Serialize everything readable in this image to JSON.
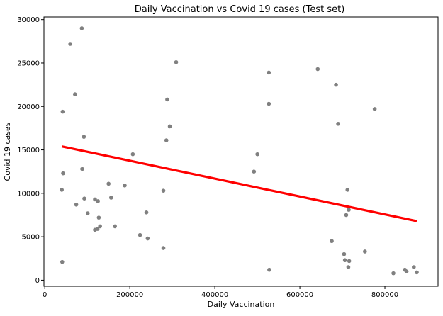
{
  "chart_data": {
    "type": "scatter",
    "title": "Daily Vaccination vs Covid 19 cases (Test set)",
    "xlabel": "Daily Vaccination",
    "ylabel": "Covid 19 cases",
    "xlim": [
      -2000,
      925000
    ],
    "ylim": [
      -700,
      30300
    ],
    "xticks": [
      0,
      200000,
      400000,
      600000,
      800000
    ],
    "yticks": [
      0,
      5000,
      10000,
      15000,
      20000,
      25000,
      30000
    ],
    "grid": false,
    "legend": "none",
    "point_color": "#808080",
    "line_color": "#ff0000",
    "series": [
      {
        "type": "scatter",
        "points": [
          [
            87000,
            29000
          ],
          [
            60000,
            27200
          ],
          [
            309000,
            25100
          ],
          [
            71000,
            21400
          ],
          [
            42000,
            19400
          ],
          [
            288000,
            20800
          ],
          [
            294000,
            17700
          ],
          [
            92000,
            16500
          ],
          [
            286000,
            16100
          ],
          [
            207000,
            14500
          ],
          [
            88000,
            12800
          ],
          [
            43000,
            12300
          ],
          [
            40000,
            10400
          ],
          [
            150000,
            11100
          ],
          [
            188000,
            10900
          ],
          [
            279000,
            10300
          ],
          [
            93000,
            9400
          ],
          [
            156000,
            9500
          ],
          [
            118000,
            9300
          ],
          [
            74000,
            8700
          ],
          [
            125000,
            9100
          ],
          [
            101000,
            7700
          ],
          [
            239000,
            7800
          ],
          [
            127000,
            7200
          ],
          [
            165000,
            6200
          ],
          [
            130000,
            6200
          ],
          [
            124000,
            5900
          ],
          [
            118000,
            5800
          ],
          [
            224000,
            5200
          ],
          [
            242000,
            4800
          ],
          [
            279000,
            3700
          ],
          [
            41000,
            2100
          ],
          [
            527000,
            23900
          ],
          [
            527000,
            20300
          ],
          [
            500000,
            14500
          ],
          [
            492000,
            12500
          ],
          [
            528000,
            1200
          ],
          [
            642000,
            24300
          ],
          [
            685000,
            22500
          ],
          [
            690000,
            18000
          ],
          [
            776000,
            19700
          ],
          [
            712000,
            10400
          ],
          [
            709000,
            7500
          ],
          [
            715000,
            8100
          ],
          [
            675000,
            4500
          ],
          [
            704000,
            3000
          ],
          [
            706000,
            2300
          ],
          [
            716000,
            2200
          ],
          [
            714000,
            1500
          ],
          [
            753000,
            3300
          ],
          [
            820000,
            800
          ],
          [
            847000,
            1200
          ],
          [
            851000,
            1000
          ],
          [
            868000,
            1500
          ],
          [
            875000,
            900
          ]
        ]
      },
      {
        "type": "line",
        "points": [
          [
            40000,
            15400
          ],
          [
            875000,
            6800
          ]
        ]
      }
    ]
  }
}
